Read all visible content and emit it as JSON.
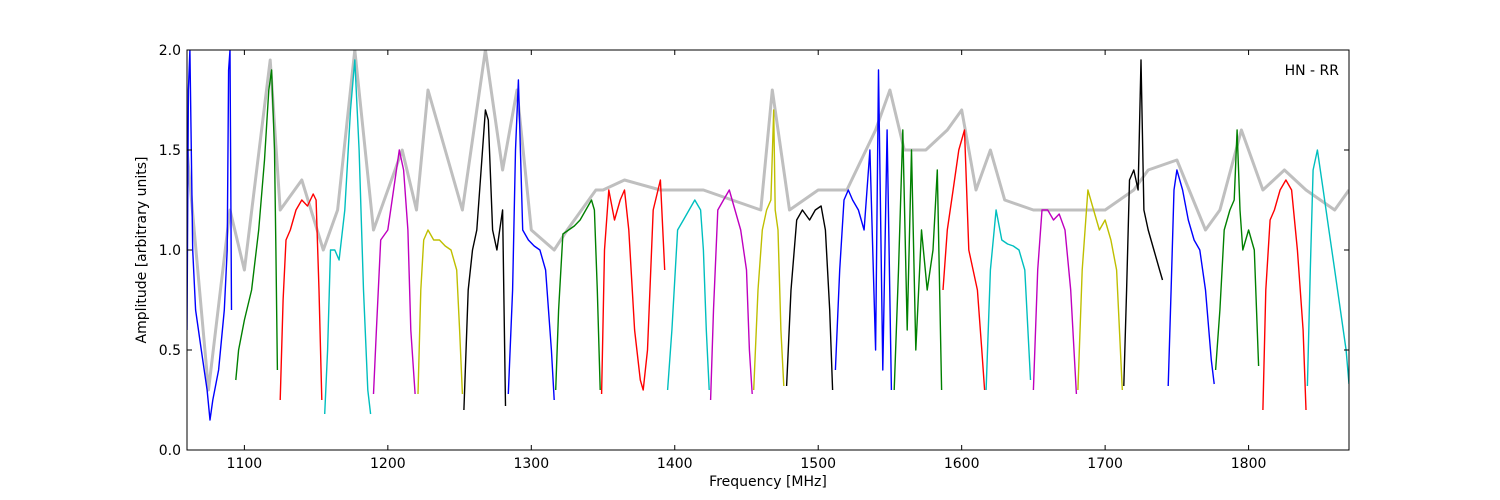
{
  "chart_data": {
    "type": "line",
    "title": "",
    "xlabel": "Frequency [MHz]",
    "ylabel": "Amplitude [arbitrary units]",
    "annotation": "HN - RR",
    "xlim": [
      1060,
      1870
    ],
    "ylim": [
      0.0,
      2.0
    ],
    "xticks": [
      1100,
      1200,
      1300,
      1400,
      1500,
      1600,
      1700,
      1800
    ],
    "yticks": [
      0.0,
      0.5,
      1.0,
      1.5,
      2.0
    ],
    "xtick_labels": [
      "1100",
      "1200",
      "1300",
      "1400",
      "1500",
      "1600",
      "1700",
      "1800"
    ],
    "ytick_labels": [
      "0.0",
      "0.5",
      "1.0",
      "1.5",
      "2.0"
    ],
    "grid": false,
    "legend": false,
    "colors": {
      "envelope": "#bfbfbf",
      "blue": "#0000ff",
      "green": "#008000",
      "red": "#ff0000",
      "cyan": "#00bfbf",
      "magenta": "#bf00bf",
      "yellow": "#bfbf00",
      "black": "#000000"
    },
    "envelope": {
      "x": [
        1060,
        1075,
        1090,
        1100,
        1118,
        1125,
        1140,
        1155,
        1165,
        1177,
        1190,
        1210,
        1220,
        1228,
        1240,
        1252,
        1268,
        1280,
        1290,
        1300,
        1316,
        1325,
        1345,
        1350,
        1365,
        1390,
        1400,
        1420,
        1440,
        1460,
        1468,
        1480,
        1500,
        1520,
        1540,
        1550,
        1560,
        1575,
        1590,
        1600,
        1610,
        1620,
        1630,
        1650,
        1670,
        1690,
        1700,
        1720,
        1730,
        1750,
        1770,
        1780,
        1795,
        1810,
        1825,
        1840,
        1860,
        1870
      ],
      "y": [
        1.5,
        0.3,
        1.2,
        0.9,
        1.95,
        1.2,
        1.35,
        1.0,
        1.2,
        2.0,
        1.1,
        1.5,
        1.2,
        1.8,
        1.5,
        1.2,
        2.0,
        1.4,
        1.8,
        1.1,
        1.0,
        1.1,
        1.3,
        1.3,
        1.35,
        1.3,
        1.3,
        1.3,
        1.25,
        1.2,
        1.8,
        1.2,
        1.3,
        1.3,
        1.6,
        1.8,
        1.5,
        1.5,
        1.6,
        1.7,
        1.3,
        1.5,
        1.25,
        1.2,
        1.2,
        1.2,
        1.2,
        1.3,
        1.4,
        1.45,
        1.1,
        1.2,
        1.6,
        1.3,
        1.4,
        1.3,
        1.2,
        1.3
      ]
    },
    "series": [
      {
        "color": "blue",
        "x": [
          1060,
          1061,
          1062,
          1064,
          1066,
          1070,
          1074,
          1076,
          1078,
          1082,
          1086,
          1088,
          1089,
          1090,
          1091
        ],
        "y": [
          0.6,
          1.8,
          2.0,
          1.0,
          0.7,
          0.5,
          0.3,
          0.15,
          0.25,
          0.4,
          0.7,
          1.0,
          1.9,
          2.0,
          0.7
        ]
      },
      {
        "color": "green",
        "x": [
          1094,
          1096,
          1100,
          1105,
          1110,
          1114,
          1117,
          1119,
          1121,
          1122,
          1123
        ],
        "y": [
          0.35,
          0.5,
          0.65,
          0.8,
          1.1,
          1.45,
          1.8,
          1.9,
          1.5,
          1.0,
          0.4
        ]
      },
      {
        "color": "red",
        "x": [
          1125,
          1127,
          1129,
          1132,
          1136,
          1140,
          1144,
          1148,
          1150,
          1152,
          1154
        ],
        "y": [
          0.25,
          0.75,
          1.05,
          1.1,
          1.2,
          1.25,
          1.22,
          1.28,
          1.25,
          0.8,
          0.25
        ]
      },
      {
        "color": "cyan",
        "x": [
          1156,
          1158,
          1160,
          1163,
          1166,
          1170,
          1174,
          1177,
          1180,
          1183,
          1186,
          1188
        ],
        "y": [
          0.18,
          0.5,
          1.0,
          1.0,
          0.95,
          1.2,
          1.7,
          1.95,
          1.5,
          0.8,
          0.3,
          0.18
        ]
      },
      {
        "color": "magenta",
        "x": [
          1190,
          1192,
          1195,
          1200,
          1205,
          1208,
          1211,
          1214,
          1216,
          1219
        ],
        "y": [
          0.28,
          0.6,
          1.05,
          1.1,
          1.35,
          1.5,
          1.4,
          1.1,
          0.6,
          0.28
        ]
      },
      {
        "color": "yellow",
        "x": [
          1221,
          1223,
          1225,
          1228,
          1232,
          1236,
          1240,
          1244,
          1248,
          1250,
          1252
        ],
        "y": [
          0.28,
          0.8,
          1.05,
          1.1,
          1.05,
          1.05,
          1.02,
          1.0,
          0.9,
          0.6,
          0.28
        ]
      },
      {
        "color": "black",
        "x": [
          1253,
          1256,
          1259,
          1262,
          1265,
          1268,
          1270,
          1273,
          1276,
          1278,
          1280,
          1282
        ],
        "y": [
          0.2,
          0.8,
          1.0,
          1.1,
          1.4,
          1.7,
          1.65,
          1.1,
          1.0,
          1.1,
          1.2,
          0.22
        ]
      },
      {
        "color": "blue",
        "x": [
          1284,
          1287,
          1289,
          1291,
          1294,
          1298,
          1302,
          1306,
          1310,
          1314,
          1316
        ],
        "y": [
          0.28,
          0.8,
          1.5,
          1.85,
          1.1,
          1.05,
          1.02,
          1.0,
          0.9,
          0.5,
          0.25
        ]
      },
      {
        "color": "green",
        "x": [
          1317,
          1319,
          1322,
          1326,
          1330,
          1334,
          1338,
          1342,
          1344,
          1346,
          1348
        ],
        "y": [
          0.3,
          0.7,
          1.08,
          1.1,
          1.12,
          1.15,
          1.2,
          1.25,
          1.2,
          0.8,
          0.3
        ]
      },
      {
        "color": "red",
        "x": [
          1349,
          1351,
          1354,
          1358,
          1362,
          1365,
          1368,
          1372,
          1376,
          1378,
          1381,
          1385,
          1390,
          1393
        ],
        "y": [
          0.28,
          1.0,
          1.3,
          1.15,
          1.25,
          1.3,
          1.1,
          0.6,
          0.35,
          0.3,
          0.5,
          1.2,
          1.35,
          0.9
        ]
      },
      {
        "color": "cyan",
        "x": [
          1395,
          1398,
          1402,
          1406,
          1410,
          1414,
          1418,
          1420,
          1422,
          1424
        ],
        "y": [
          0.3,
          0.6,
          1.1,
          1.15,
          1.2,
          1.25,
          1.2,
          1.0,
          0.6,
          0.3
        ]
      },
      {
        "color": "magenta",
        "x": [
          1425,
          1427,
          1430,
          1434,
          1438,
          1442,
          1446,
          1450,
          1452,
          1454
        ],
        "y": [
          0.25,
          0.7,
          1.2,
          1.25,
          1.3,
          1.2,
          1.1,
          0.9,
          0.5,
          0.28
        ]
      },
      {
        "color": "yellow",
        "x": [
          1455,
          1458,
          1461,
          1464,
          1467,
          1469,
          1470,
          1472,
          1474,
          1476
        ],
        "y": [
          0.3,
          0.8,
          1.1,
          1.2,
          1.25,
          1.7,
          1.2,
          1.1,
          0.6,
          0.32
        ]
      },
      {
        "color": "black",
        "x": [
          1478,
          1481,
          1485,
          1489,
          1494,
          1498,
          1502,
          1505,
          1508,
          1510
        ],
        "y": [
          0.32,
          0.8,
          1.15,
          1.2,
          1.15,
          1.2,
          1.22,
          1.1,
          0.7,
          0.3
        ]
      },
      {
        "color": "blue",
        "x": [
          1512,
          1515,
          1518,
          1521,
          1524,
          1528,
          1532,
          1536,
          1540,
          1542,
          1545,
          1548,
          1551
        ],
        "y": [
          0.4,
          0.9,
          1.25,
          1.3,
          1.25,
          1.2,
          1.1,
          1.5,
          0.5,
          1.9,
          0.4,
          1.6,
          0.3
        ]
      },
      {
        "color": "green",
        "x": [
          1553,
          1556,
          1559,
          1562,
          1565,
          1568,
          1572,
          1576,
          1580,
          1583,
          1586
        ],
        "y": [
          0.3,
          0.9,
          1.6,
          0.6,
          1.5,
          0.5,
          1.1,
          0.8,
          1.0,
          1.4,
          0.3
        ]
      },
      {
        "color": "red",
        "x": [
          1587,
          1590,
          1594,
          1598,
          1602,
          1605,
          1608,
          1611,
          1614,
          1616
        ],
        "y": [
          0.8,
          1.1,
          1.3,
          1.5,
          1.6,
          1.0,
          0.9,
          0.8,
          0.5,
          0.3
        ]
      },
      {
        "color": "cyan",
        "x": [
          1617,
          1620,
          1624,
          1628,
          1632,
          1636,
          1640,
          1644,
          1648
        ],
        "y": [
          0.3,
          0.9,
          1.2,
          1.05,
          1.03,
          1.02,
          1.0,
          0.9,
          0.35
        ]
      },
      {
        "color": "magenta",
        "x": [
          1650,
          1653,
          1656,
          1660,
          1664,
          1668,
          1672,
          1676,
          1680
        ],
        "y": [
          0.3,
          0.9,
          1.2,
          1.2,
          1.15,
          1.18,
          1.1,
          0.8,
          0.28
        ]
      },
      {
        "color": "yellow",
        "x": [
          1681,
          1684,
          1688,
          1692,
          1696,
          1700,
          1704,
          1708,
          1712
        ],
        "y": [
          0.3,
          0.9,
          1.3,
          1.2,
          1.1,
          1.15,
          1.05,
          0.9,
          0.3
        ]
      },
      {
        "color": "black",
        "x": [
          1713,
          1715,
          1717,
          1720,
          1723,
          1725,
          1727,
          1730,
          1734,
          1738,
          1740
        ],
        "y": [
          0.32,
          0.8,
          1.35,
          1.4,
          1.3,
          1.95,
          1.2,
          1.1,
          1.0,
          0.9,
          0.85
        ]
      },
      {
        "color": "blue",
        "x": [
          1744,
          1746,
          1748,
          1750,
          1754,
          1758,
          1762,
          1766,
          1770,
          1774,
          1776
        ],
        "y": [
          0.32,
          0.8,
          1.3,
          1.4,
          1.3,
          1.15,
          1.05,
          1.0,
          0.8,
          0.45,
          0.33
        ]
      },
      {
        "color": "green",
        "x": [
          1777,
          1780,
          1783,
          1787,
          1790,
          1792,
          1794,
          1796,
          1800,
          1804,
          1807
        ],
        "y": [
          0.4,
          0.7,
          1.1,
          1.2,
          1.25,
          1.6,
          1.2,
          1.0,
          1.1,
          1.0,
          0.42
        ]
      },
      {
        "color": "red",
        "x": [
          1810,
          1812,
          1815,
          1818,
          1822,
          1826,
          1830,
          1834,
          1838,
          1840
        ],
        "y": [
          0.2,
          0.8,
          1.15,
          1.2,
          1.3,
          1.35,
          1.3,
          1.0,
          0.6,
          0.2
        ]
      },
      {
        "color": "cyan",
        "x": [
          1841,
          1843,
          1845,
          1848,
          1852,
          1856,
          1860,
          1864,
          1868,
          1870
        ],
        "y": [
          0.32,
          0.9,
          1.4,
          1.5,
          1.3,
          1.1,
          0.9,
          0.7,
          0.5,
          0.33
        ]
      }
    ]
  }
}
